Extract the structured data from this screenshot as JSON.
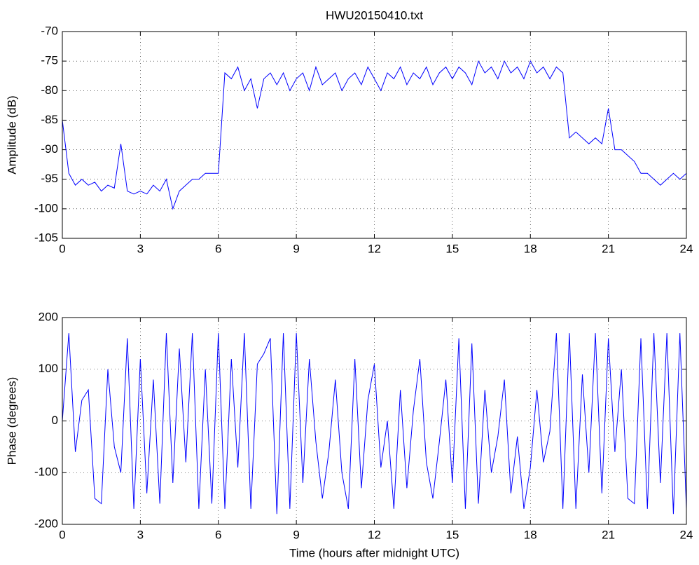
{
  "chart_data": [
    {
      "type": "line",
      "title": "HWU20150410.txt",
      "y_label": "Amplitude (dB)",
      "x": [
        0,
        0.25,
        0.5,
        0.75,
        1,
        1.25,
        1.5,
        1.75,
        2,
        2.25,
        2.5,
        2.75,
        3,
        3.25,
        3.5,
        3.75,
        4,
        4.25,
        4.5,
        4.75,
        5,
        5.25,
        5.5,
        5.75,
        6,
        6.25,
        6.5,
        6.75,
        7,
        7.25,
        7.5,
        7.75,
        8,
        8.25,
        8.5,
        8.75,
        9,
        9.25,
        9.5,
        9.75,
        10,
        10.25,
        10.5,
        10.75,
        11,
        11.25,
        11.5,
        11.75,
        12,
        12.25,
        12.5,
        12.75,
        13,
        13.25,
        13.5,
        13.75,
        14,
        14.25,
        14.5,
        14.75,
        15,
        15.25,
        15.5,
        15.75,
        16,
        16.25,
        16.5,
        16.75,
        17,
        17.25,
        17.5,
        17.75,
        18,
        18.25,
        18.5,
        18.75,
        19,
        19.25,
        19.5,
        19.75,
        20,
        20.25,
        20.5,
        20.75,
        21,
        21.25,
        21.5,
        21.75,
        22,
        22.25,
        22.5,
        22.75,
        23,
        23.25,
        23.5,
        23.75,
        24
      ],
      "series": [
        {
          "color": "#0000ff",
          "values": [
            -85,
            -94,
            -96,
            -95,
            -96,
            -95.5,
            -97,
            -96,
            -96.5,
            -89,
            -97,
            -97.5,
            -97,
            -97.5,
            -96,
            -97,
            -95,
            -100,
            -97,
            -96,
            -95,
            -95,
            -94,
            -94,
            -94,
            -77,
            -78,
            -76,
            -80,
            -78,
            -83,
            -78,
            -77,
            -79,
            -77,
            -80,
            -78,
            -77,
            -80,
            -76,
            -79,
            -78,
            -77,
            -80,
            -78,
            -77,
            -79,
            -76,
            -78,
            -80,
            -77,
            -78,
            -76,
            -79,
            -77,
            -78,
            -76,
            -79,
            -77,
            -76,
            -78,
            -76,
            -77,
            -79,
            -75,
            -77,
            -76,
            -78,
            -75,
            -77,
            -76,
            -78,
            -75,
            -77,
            -76,
            -78,
            -76,
            -77,
            -88,
            -87,
            -88,
            -89,
            -88,
            -89,
            -83,
            -90,
            -90,
            -91,
            -92,
            -94,
            -94,
            -95,
            -96,
            -95,
            -94,
            -95,
            -94
          ]
        }
      ],
      "xlim": [
        0,
        24
      ],
      "xticks": [
        0,
        3,
        6,
        9,
        12,
        15,
        18,
        21,
        24
      ],
      "ylim": [
        -105,
        -70
      ],
      "yticks": [
        -105,
        -100,
        -95,
        -90,
        -85,
        -80,
        -75,
        -70
      ],
      "grid": true
    },
    {
      "type": "line",
      "y_label": "Phase (degrees)",
      "x_label": "Time (hours after midnight UTC)",
      "x": [
        0,
        0.25,
        0.5,
        0.75,
        1,
        1.25,
        1.5,
        1.75,
        2,
        2.25,
        2.5,
        2.75,
        3,
        3.25,
        3.5,
        3.75,
        4,
        4.25,
        4.5,
        4.75,
        5,
        5.25,
        5.5,
        5.75,
        6,
        6.25,
        6.5,
        6.75,
        7,
        7.25,
        7.5,
        7.75,
        8,
        8.25,
        8.5,
        8.75,
        9,
        9.25,
        9.5,
        9.75,
        10,
        10.25,
        10.5,
        10.75,
        11,
        11.25,
        11.5,
        11.75,
        12,
        12.25,
        12.5,
        12.75,
        13,
        13.25,
        13.5,
        13.75,
        14,
        14.25,
        14.5,
        14.75,
        15,
        15.25,
        15.5,
        15.75,
        16,
        16.25,
        16.5,
        16.75,
        17,
        17.25,
        17.5,
        17.75,
        18,
        18.25,
        18.5,
        18.75,
        19,
        19.25,
        19.5,
        19.75,
        20,
        20.25,
        20.5,
        20.75,
        21,
        21.25,
        21.5,
        21.75,
        22,
        22.25,
        22.5,
        22.75,
        23,
        23.25,
        23.5,
        23.75,
        24
      ],
      "series": [
        {
          "color": "#0000ff",
          "values": [
            0,
            170,
            -60,
            40,
            60,
            -150,
            -160,
            100,
            -50,
            -100,
            160,
            -170,
            120,
            -140,
            80,
            -160,
            170,
            -120,
            140,
            -80,
            170,
            -170,
            100,
            -160,
            170,
            -170,
            120,
            -90,
            170,
            -170,
            110,
            130,
            160,
            -180,
            170,
            -170,
            170,
            -120,
            120,
            -40,
            -150,
            -60,
            80,
            -100,
            -170,
            120,
            -130,
            40,
            110,
            -90,
            0,
            -170,
            60,
            -130,
            20,
            120,
            -80,
            -150,
            -40,
            80,
            -120,
            160,
            -170,
            150,
            -160,
            60,
            -100,
            -30,
            80,
            -140,
            -30,
            -170,
            -90,
            60,
            -80,
            -20,
            170,
            -170,
            170,
            -170,
            90,
            -100,
            170,
            -140,
            160,
            -60,
            100,
            -150,
            -160,
            160,
            -170,
            170,
            -120,
            170,
            -180,
            170,
            -170
          ]
        }
      ],
      "xlim": [
        0,
        24
      ],
      "xticks": [
        0,
        3,
        6,
        9,
        12,
        15,
        18,
        21,
        24
      ],
      "ylim": [
        -200,
        200
      ],
      "yticks": [
        -200,
        -100,
        0,
        100,
        200
      ],
      "grid": true
    }
  ]
}
